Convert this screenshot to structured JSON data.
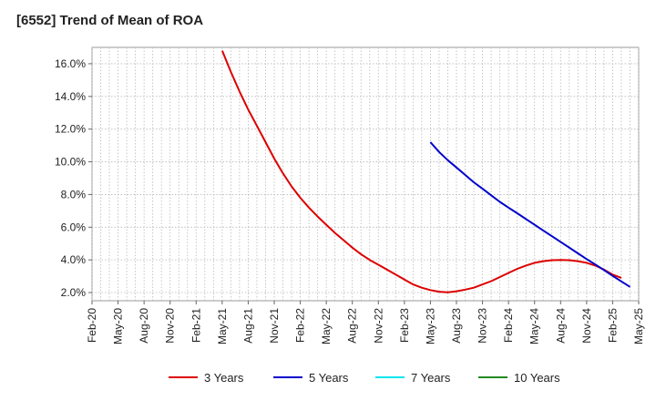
{
  "title": "[6552]  Trend of Mean of ROA",
  "chart_data": {
    "type": "line",
    "title": "[6552]  Trend of Mean of ROA",
    "xlabel": "",
    "ylabel": "",
    "x_ticks": [
      "Feb-20",
      "May-20",
      "Aug-20",
      "Nov-20",
      "Feb-21",
      "May-21",
      "Aug-21",
      "Nov-21",
      "Feb-22",
      "May-22",
      "Aug-22",
      "Nov-22",
      "Feb-23",
      "May-23",
      "Aug-23",
      "Nov-23",
      "Feb-24",
      "May-24",
      "Aug-24",
      "Nov-24",
      "Feb-25",
      "May-25"
    ],
    "y_ticks": [
      "2.0%",
      "4.0%",
      "6.0%",
      "8.0%",
      "10.0%",
      "12.0%",
      "14.0%",
      "16.0%"
    ],
    "ylim": [
      1.5,
      17.0
    ],
    "grid": true,
    "legend_position": "bottom",
    "series": [
      {
        "name": "3 Years",
        "color": "#dd0000",
        "points": [
          [
            "May-21",
            16.8
          ],
          [
            "Jun-21",
            15.5
          ],
          [
            "Jul-21",
            14.3
          ],
          [
            "Aug-21",
            13.2
          ],
          [
            "Sep-21",
            12.2
          ],
          [
            "Oct-21",
            11.2
          ],
          [
            "Nov-21",
            10.2
          ],
          [
            "Dec-21",
            9.3
          ],
          [
            "Jan-22",
            8.5
          ],
          [
            "Feb-22",
            7.8
          ],
          [
            "Mar-22",
            7.2
          ],
          [
            "Apr-22",
            6.65
          ],
          [
            "May-22",
            6.15
          ],
          [
            "Jun-22",
            5.65
          ],
          [
            "Jul-22",
            5.2
          ],
          [
            "Aug-22",
            4.75
          ],
          [
            "Sep-22",
            4.35
          ],
          [
            "Oct-22",
            4.0
          ],
          [
            "Nov-22",
            3.7
          ],
          [
            "Dec-22",
            3.4
          ],
          [
            "Jan-23",
            3.1
          ],
          [
            "Feb-23",
            2.8
          ],
          [
            "Mar-23",
            2.5
          ],
          [
            "Apr-23",
            2.3
          ],
          [
            "May-23",
            2.15
          ],
          [
            "Jun-23",
            2.05
          ],
          [
            "Jul-23",
            2.02
          ],
          [
            "Aug-23",
            2.08
          ],
          [
            "Sep-23",
            2.18
          ],
          [
            "Oct-23",
            2.3
          ],
          [
            "Nov-23",
            2.5
          ],
          [
            "Dec-23",
            2.7
          ],
          [
            "Jan-24",
            2.95
          ],
          [
            "Feb-24",
            3.2
          ],
          [
            "Mar-24",
            3.45
          ],
          [
            "Apr-24",
            3.65
          ],
          [
            "May-24",
            3.82
          ],
          [
            "Jun-24",
            3.92
          ],
          [
            "Jul-24",
            3.98
          ],
          [
            "Aug-24",
            4.0
          ],
          [
            "Sep-24",
            3.98
          ],
          [
            "Oct-24",
            3.92
          ],
          [
            "Nov-24",
            3.82
          ],
          [
            "Dec-24",
            3.65
          ],
          [
            "Jan-25",
            3.4
          ],
          [
            "Feb-25",
            3.1
          ],
          [
            "Mar-25",
            2.9
          ]
        ]
      },
      {
        "name": "5 Years",
        "color": "#0000cc",
        "points": [
          [
            "May-23",
            11.2
          ],
          [
            "Jun-23",
            10.6
          ],
          [
            "Jul-23",
            10.1
          ],
          [
            "Aug-23",
            9.65
          ],
          [
            "Sep-23",
            9.2
          ],
          [
            "Oct-23",
            8.75
          ],
          [
            "Nov-23",
            8.35
          ],
          [
            "Dec-23",
            7.95
          ],
          [
            "Jan-24",
            7.55
          ],
          [
            "Feb-24",
            7.2
          ],
          [
            "Mar-24",
            6.85
          ],
          [
            "Apr-24",
            6.5
          ],
          [
            "May-24",
            6.15
          ],
          [
            "Jun-24",
            5.8
          ],
          [
            "Jul-24",
            5.45
          ],
          [
            "Aug-24",
            5.1
          ],
          [
            "Sep-24",
            4.75
          ],
          [
            "Oct-24",
            4.4
          ],
          [
            "Nov-24",
            4.05
          ],
          [
            "Dec-24",
            3.72
          ],
          [
            "Jan-25",
            3.38
          ],
          [
            "Feb-25",
            3.02
          ],
          [
            "Mar-25",
            2.68
          ],
          [
            "Apr-25",
            2.35
          ]
        ]
      },
      {
        "name": "7 Years",
        "color": "#00e5ee",
        "points": []
      },
      {
        "name": "10 Years",
        "color": "#228b22",
        "points": []
      }
    ]
  }
}
